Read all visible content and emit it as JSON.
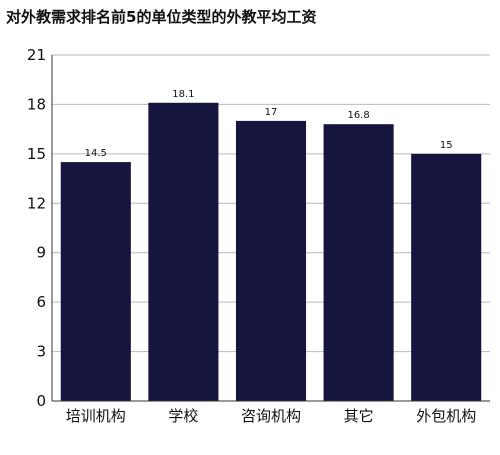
{
  "chart_data": {
    "type": "bar",
    "title": "对外教需求排名前5的单位类型的外教平均工资",
    "xlabel": "",
    "ylabel": "",
    "categories": [
      "培训机构",
      "学校",
      "咨询机构",
      "其它",
      "外包机构"
    ],
    "values": [
      14.5,
      18.1,
      17,
      16.8,
      15
    ],
    "value_labels": [
      "14.5",
      "18.1",
      "17",
      "16.8",
      "15"
    ],
    "ylim": [
      0,
      21
    ],
    "yticks": [
      "0",
      "3",
      "6",
      "9",
      "12",
      "15",
      "18",
      "21"
    ],
    "grid": true,
    "bar_color": "#15153f"
  }
}
